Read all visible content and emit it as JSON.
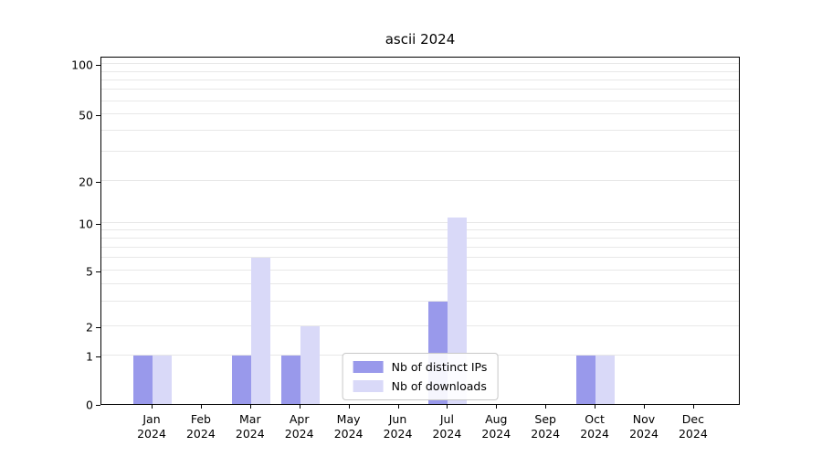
{
  "title": "ascii 2024",
  "chart_data": {
    "type": "bar",
    "title": "ascii 2024",
    "categories": [
      "Jan 2024",
      "Feb 2024",
      "Mar 2024",
      "Apr 2024",
      "May 2024",
      "Jun 2024",
      "Jul 2024",
      "Aug 2024",
      "Sep 2024",
      "Oct 2024",
      "Nov 2024",
      "Dec 2024"
    ],
    "series": [
      {
        "name": "Nb of distinct IPs",
        "color": "#9999eb",
        "values": [
          1,
          0,
          1,
          1,
          0,
          0,
          3,
          0,
          0,
          1,
          0,
          0
        ]
      },
      {
        "name": "Nb of downloads",
        "color": "#d9d9f8",
        "values": [
          1,
          0,
          6,
          2,
          0,
          0,
          11,
          0,
          0,
          1,
          0,
          0
        ]
      }
    ],
    "yticks": [
      0,
      1,
      2,
      5,
      10,
      20,
      50,
      100
    ],
    "yscale": "symlog",
    "ylim": [
      0,
      110
    ],
    "grid": "horizontal",
    "legend_position": "bottom-center-inside",
    "xlabel": "",
    "ylabel": ""
  },
  "colors": {
    "grid": "#e8e8e8",
    "axis": "#000000",
    "background": "#ffffff"
  }
}
